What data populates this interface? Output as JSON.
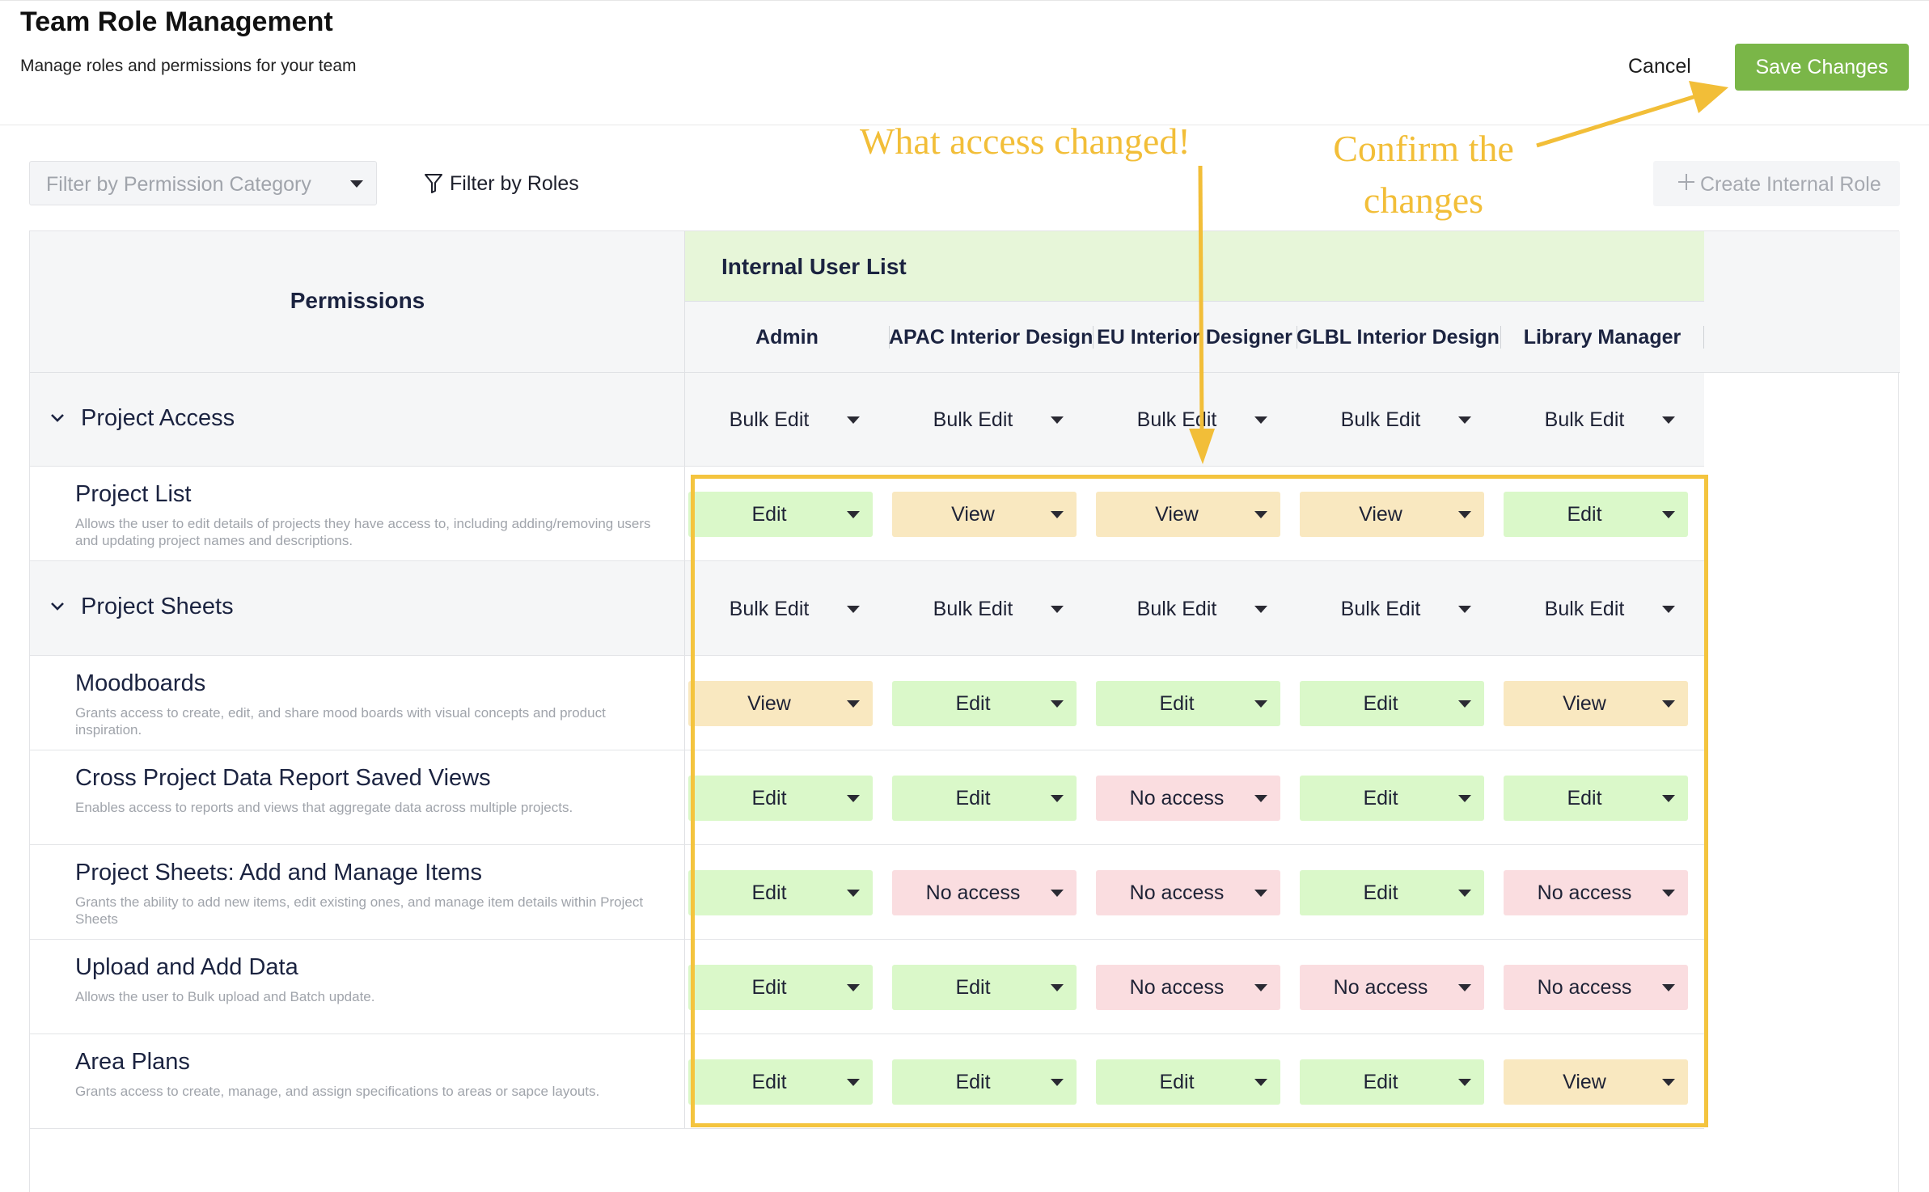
{
  "header": {
    "title": "Team Role Management",
    "subtitle": "Manage roles and permissions for your team",
    "cancel_label": "Cancel",
    "save_label": "Save Changes"
  },
  "toolbar": {
    "category_filter_placeholder": "Filter by Permission Category",
    "roles_filter_label": "Filter by Roles",
    "create_role_label": "Create Internal Role"
  },
  "table": {
    "permissions_header": "Permissions",
    "group_header": "Internal User List",
    "roles": [
      "Admin",
      "APAC Interior Design...",
      "EU Interior Designer",
      "GLBL Interior Designer",
      "Library Manager"
    ],
    "rows": [
      {
        "type": "section",
        "title": "Project Access",
        "values": [
          "Bulk Edit",
          "Bulk Edit",
          "Bulk Edit",
          "Bulk Edit",
          "Bulk Edit"
        ]
      },
      {
        "type": "item",
        "title": "Project List",
        "description": "Allows the user to edit details of projects they have access to, including adding/removing users and updating project names and descriptions.",
        "values": [
          "Edit",
          "View",
          "View",
          "View",
          "Edit"
        ]
      },
      {
        "type": "section",
        "title": "Project Sheets",
        "values": [
          "Bulk Edit",
          "Bulk Edit",
          "Bulk Edit",
          "Bulk Edit",
          "Bulk Edit"
        ]
      },
      {
        "type": "item",
        "title": "Moodboards",
        "description": "Grants access to create, edit, and share mood boards with visual concepts and product inspiration.",
        "values": [
          "View",
          "Edit",
          "Edit",
          "Edit",
          "View"
        ]
      },
      {
        "type": "item",
        "title": "Cross Project Data Report Saved Views",
        "description": "Enables access to reports and views that aggregate data across multiple projects.",
        "values": [
          "Edit",
          "Edit",
          "No access",
          "Edit",
          "Edit"
        ]
      },
      {
        "type": "item",
        "title": "Project Sheets: Add and Manage Items",
        "description": "Grants the ability to add new items, edit existing ones, and manage item details within Project Sheets",
        "values": [
          "Edit",
          "No access",
          "No access",
          "Edit",
          "No access"
        ]
      },
      {
        "type": "item",
        "title": "Upload and Add Data",
        "description": "Allows the user to Bulk upload and Batch update.",
        "values": [
          "Edit",
          "Edit",
          "No access",
          "No access",
          "No access"
        ]
      },
      {
        "type": "item",
        "title": "Area Plans",
        "description": "Grants access to create, manage, and assign specifications to areas or sapce layouts.",
        "values": [
          "Edit",
          "Edit",
          "Edit",
          "Edit",
          "View"
        ]
      }
    ]
  },
  "annotations": {
    "access_changed": "What access changed!",
    "confirm_line1": "Confirm the",
    "confirm_line2": "changes",
    "color": "#f2be38"
  },
  "colors": {
    "save_button": "#7ab648",
    "edit": "#daf8c9",
    "view": "#f9e8c0",
    "no_access": "#fadde0",
    "group_header": "#e7f6d9"
  }
}
